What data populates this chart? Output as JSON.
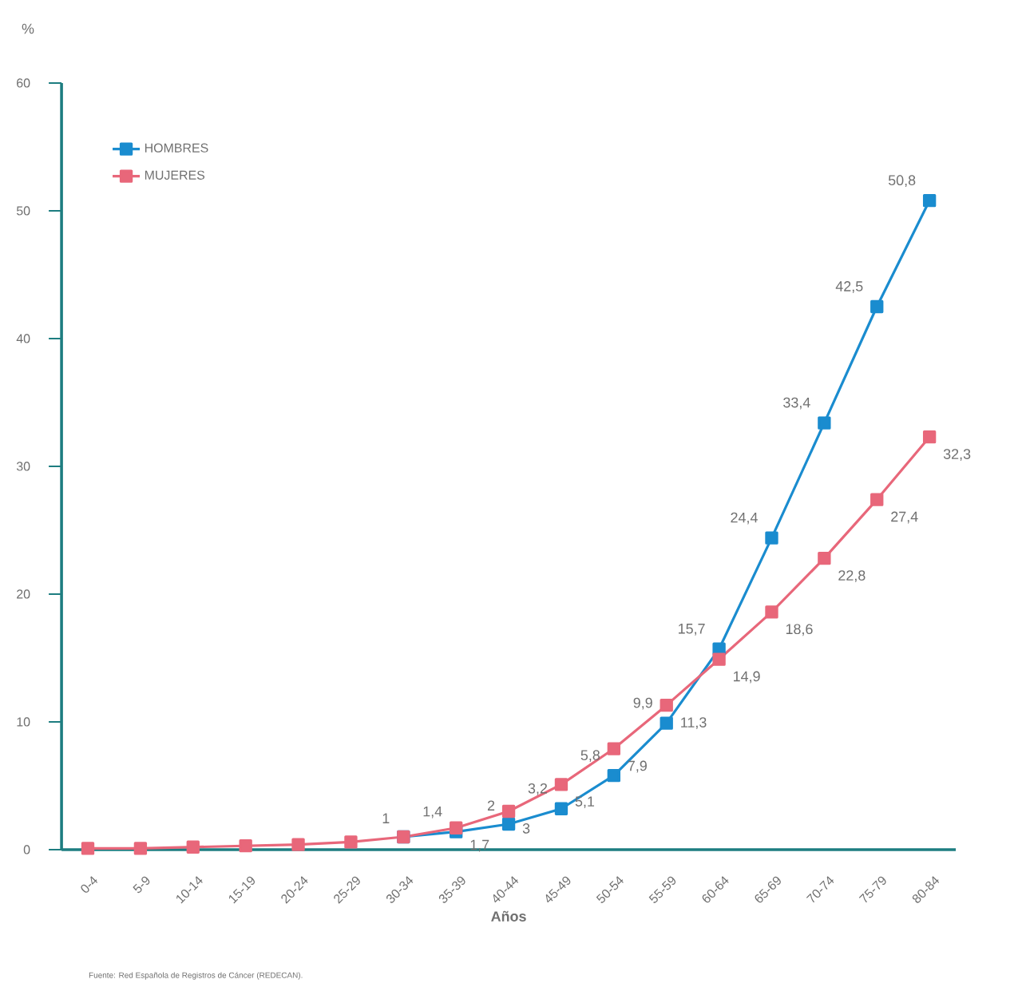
{
  "chart_data": {
    "type": "line",
    "ylabel": "%",
    "xlabel": "Años",
    "annotations": [
      "Fuente: Red Española de Registros de Cáncer (REDECAN)."
    ],
    "categories": [
      "0-4",
      "5-9",
      "10-14",
      "15-19",
      "20-24",
      "25-29",
      "30-34",
      "35-39",
      "40-44",
      "45-49",
      "50-54",
      "55-59",
      "60-64",
      "65-69",
      "70-74",
      "75-79",
      "80-84"
    ],
    "ylim": [
      0,
      60
    ],
    "yticks": [
      0,
      10,
      20,
      30,
      40,
      50,
      60
    ],
    "grid": false,
    "legend": "top left",
    "marker": "square",
    "line_style": "solid",
    "series": [
      {
        "name": "HOMBRES",
        "color": "#1a8ccf",
        "values": [
          null,
          null,
          null,
          null,
          null,
          null,
          1,
          1.4,
          2,
          3.2,
          5.8,
          9.9,
          15.7,
          24.4,
          33.4,
          42.5,
          50.8
        ],
        "value_labels": [
          null,
          null,
          null,
          null,
          null,
          null,
          "1",
          "1,4",
          "2",
          "3,2",
          "5,8",
          "9,9",
          "15,7",
          "24,4",
          "33,4",
          "42,5",
          "50,8"
        ]
      },
      {
        "name": "MUJERES",
        "color": "#e8677a",
        "values": [
          0.1,
          0.1,
          0.2,
          0.3,
          0.4,
          0.6,
          1,
          1.7,
          3,
          5.1,
          7.9,
          11.3,
          14.9,
          18.6,
          22.8,
          27.4,
          32.3
        ],
        "value_labels": [
          null,
          null,
          null,
          null,
          null,
          null,
          null,
          "1,7",
          "3",
          "5,1",
          "7,9",
          "11,3",
          "14,9",
          "18,6",
          "22,8",
          "27,4",
          "32,3"
        ]
      }
    ]
  }
}
